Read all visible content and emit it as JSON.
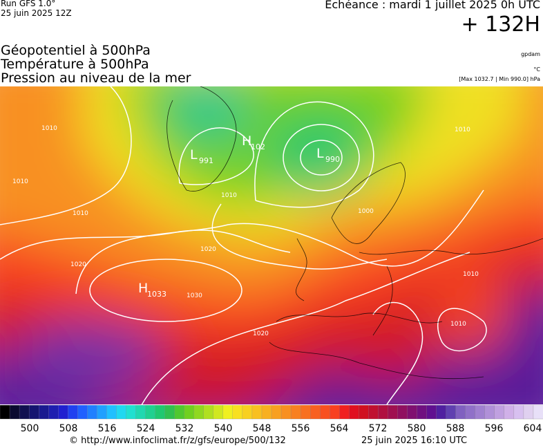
{
  "header": {
    "run": "Run GFS 1.0°",
    "date": "25 juin 2025 12Z",
    "forecast": "Echéance : mardi 1 juillet 2025 0h UTC",
    "lead": "+ 132H"
  },
  "titles": [
    "Géopotentiel à 500hPa",
    "Température à 500hPa",
    "Pression au niveau de la mer"
  ],
  "units": [
    "gpdam",
    "°C",
    "[Max 1032.7 | Min 990.0] hPa"
  ],
  "centers": [
    {
      "letter": "L",
      "value": "991"
    },
    {
      "letter": "H",
      "value": "102"
    },
    {
      "letter": "L",
      "value": "990"
    },
    {
      "letter": "H",
      "value": "1033"
    }
  ],
  "isobar_labels": [
    "1010",
    "1010",
    "1010",
    "1020",
    "1020",
    "1030",
    "1020",
    "1010",
    "1010",
    "1000",
    "1010",
    "1010"
  ],
  "scale": {
    "ticks": [
      500,
      508,
      516,
      524,
      532,
      540,
      548,
      556,
      564,
      572,
      580,
      588,
      596,
      604
    ],
    "colors": [
      "#000000",
      "#0a0a30",
      "#101050",
      "#141470",
      "#1a1a90",
      "#1e1eb0",
      "#2020d0",
      "#2040f0",
      "#2060ff",
      "#2080ff",
      "#20a0ff",
      "#20c0ff",
      "#20d8f0",
      "#20e0d0",
      "#20d8b0",
      "#20d090",
      "#20c870",
      "#30c050",
      "#50c830",
      "#70d020",
      "#90d820",
      "#b0e020",
      "#d0e820",
      "#f0f020",
      "#f8e020",
      "#f8d020",
      "#f8c020",
      "#f8b020",
      "#f8a020",
      "#f89020",
      "#f88020",
      "#f87020",
      "#f86020",
      "#f85020",
      "#f84020",
      "#f02020",
      "#e01020",
      "#d01020",
      "#c01030",
      "#b01040",
      "#a01050",
      "#901060",
      "#801070",
      "#701080",
      "#601090",
      "#5020a0",
      "#6040b0",
      "#8060c0",
      "#9070c8",
      "#a080d0",
      "#b090d8",
      "#c0a0e0",
      "#d0b0e8",
      "#d8c0f0",
      "#e0d0f0",
      "#e8e0f8"
    ]
  },
  "footer": {
    "url": "© http://www.infoclimat.fr/z/gfs/europe/500/132",
    "timestamp": "25 juin 2025 16:10 UTC"
  }
}
